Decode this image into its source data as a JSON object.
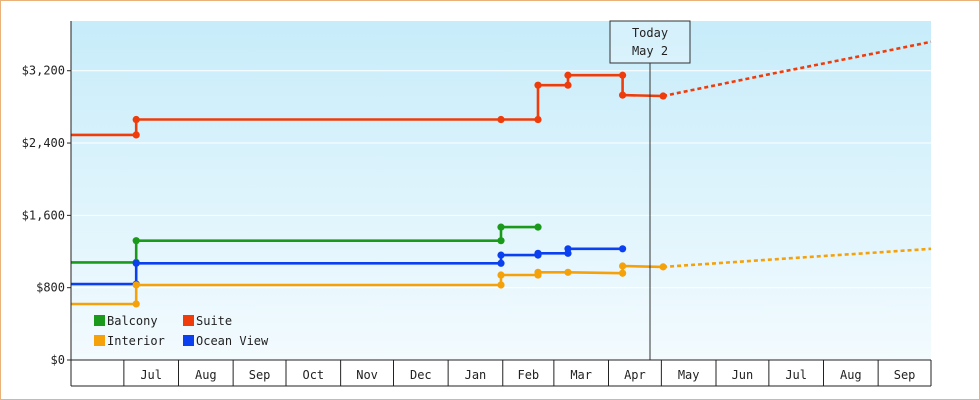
{
  "chart_data": {
    "type": "line",
    "step": true,
    "title": "",
    "xlabel": "",
    "ylabel": "",
    "x_axis": {
      "start": "2023-06-01",
      "months": [
        "Jul",
        "Aug",
        "Sep",
        "Oct",
        "Nov",
        "Dec",
        "Jan",
        "Feb",
        "Mar",
        "Apr",
        "May",
        "Jun",
        "Jul",
        "Aug",
        "Sep"
      ],
      "month_starts": [
        "2023-07-01",
        "2023-08-01",
        "2023-09-01",
        "2023-10-01",
        "2023-11-01",
        "2023-12-01",
        "2024-01-01",
        "2024-02-01",
        "2024-03-01",
        "2024-04-01",
        "2024-05-01",
        "2024-06-01",
        "2024-07-01",
        "2024-08-01",
        "2024-09-01"
      ],
      "end": "2024-10-01"
    },
    "y_axis": {
      "min": 0,
      "max": 3750,
      "ticks": [
        0,
        800,
        1600,
        2400,
        3200
      ],
      "tick_labels": [
        "$0",
        "$800",
        "$1,600",
        "$2,400",
        "$3,200"
      ]
    },
    "today": {
      "line1": "Today",
      "line2": "May 2",
      "date": "2024-05-02"
    },
    "legend": {
      "position": "bottom-left",
      "items": [
        {
          "label": "Balcony",
          "color": "#1a9a1a"
        },
        {
          "label": "Suite",
          "color": "#f03c0a"
        },
        {
          "label": "Interior",
          "color": "#f5a20a"
        },
        {
          "label": "Ocean View",
          "color": "#0a40f0"
        }
      ]
    },
    "series": [
      {
        "name": "Suite",
        "color": "#f03c0a",
        "points": [
          {
            "x": "2023-06-01",
            "y": 2490
          },
          {
            "x": "2023-07-08",
            "y": 2490
          },
          {
            "x": "2023-07-08",
            "y": 2660
          },
          {
            "x": "2024-01-31",
            "y": 2660
          },
          {
            "x": "2024-02-21",
            "y": 2660
          },
          {
            "x": "2024-02-21",
            "y": 3040
          },
          {
            "x": "2024-03-09",
            "y": 3040
          },
          {
            "x": "2024-03-09",
            "y": 3150
          },
          {
            "x": "2024-04-09",
            "y": 3150
          },
          {
            "x": "2024-04-09",
            "y": 2930
          },
          {
            "x": "2024-05-02",
            "y": 2920
          }
        ],
        "forecast": [
          {
            "x": "2024-05-02",
            "y": 2920
          },
          {
            "x": "2024-06-01",
            "y": 3040
          },
          {
            "x": "2024-07-01",
            "y": 3160
          },
          {
            "x": "2024-08-01",
            "y": 3280
          },
          {
            "x": "2024-09-01",
            "y": 3400
          },
          {
            "x": "2024-10-01",
            "y": 3520
          }
        ]
      },
      {
        "name": "Balcony",
        "color": "#1a9a1a",
        "points": [
          {
            "x": "2023-06-01",
            "y": 1080
          },
          {
            "x": "2023-07-08",
            "y": 1080
          },
          {
            "x": "2023-07-08",
            "y": 1320
          },
          {
            "x": "2024-01-31",
            "y": 1320
          },
          {
            "x": "2024-01-31",
            "y": 1470
          },
          {
            "x": "2024-02-21",
            "y": 1470
          }
        ],
        "forecast": []
      },
      {
        "name": "Ocean View",
        "color": "#0a40f0",
        "points": [
          {
            "x": "2023-06-01",
            "y": 840
          },
          {
            "x": "2023-07-08",
            "y": 840
          },
          {
            "x": "2023-07-08",
            "y": 1070
          },
          {
            "x": "2024-01-31",
            "y": 1070
          },
          {
            "x": "2024-01-31",
            "y": 1160
          },
          {
            "x": "2024-02-21",
            "y": 1160
          },
          {
            "x": "2024-02-21",
            "y": 1180
          },
          {
            "x": "2024-03-09",
            "y": 1180
          },
          {
            "x": "2024-03-09",
            "y": 1230
          },
          {
            "x": "2024-04-09",
            "y": 1230
          }
        ],
        "forecast": []
      },
      {
        "name": "Interior",
        "color": "#f5a20a",
        "points": [
          {
            "x": "2023-06-01",
            "y": 620
          },
          {
            "x": "2023-07-08",
            "y": 620
          },
          {
            "x": "2023-07-08",
            "y": 830
          },
          {
            "x": "2024-01-31",
            "y": 830
          },
          {
            "x": "2024-01-31",
            "y": 940
          },
          {
            "x": "2024-02-21",
            "y": 940
          },
          {
            "x": "2024-02-21",
            "y": 970
          },
          {
            "x": "2024-03-09",
            "y": 970
          },
          {
            "x": "2024-04-09",
            "y": 960
          },
          {
            "x": "2024-04-09",
            "y": 1040
          },
          {
            "x": "2024-05-02",
            "y": 1030
          }
        ],
        "forecast": [
          {
            "x": "2024-05-02",
            "y": 1030
          },
          {
            "x": "2024-06-01",
            "y": 1070
          },
          {
            "x": "2024-07-01",
            "y": 1110
          },
          {
            "x": "2024-08-01",
            "y": 1150
          },
          {
            "x": "2024-09-01",
            "y": 1190
          },
          {
            "x": "2024-10-01",
            "y": 1230
          }
        ]
      }
    ]
  }
}
